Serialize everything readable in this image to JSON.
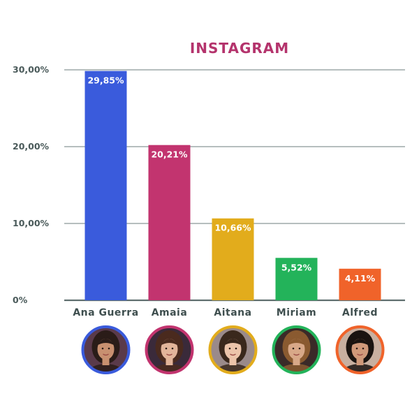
{
  "chart_data": {
    "type": "bar",
    "title": "INSTAGRAM",
    "xlabel": "",
    "ylabel": "",
    "categories": [
      "Ana Guerra",
      "Amaia",
      "Aitana",
      "Miriam",
      "Alfred"
    ],
    "values": [
      29.85,
      20.21,
      10.66,
      5.52,
      4.11
    ],
    "value_labels": [
      "29,85%",
      "20,21%",
      "10,66%",
      "5,52%",
      "4,11%"
    ],
    "colors": [
      "#3a5bdc",
      "#c2346f",
      "#e2ac1c",
      "#23b35a",
      "#f0632a"
    ],
    "title_color": "#b4336c",
    "ylim": [
      0,
      30
    ],
    "yticks": [
      0,
      10,
      20,
      30
    ],
    "ytick_labels": [
      "0%",
      "10,00%",
      "20,00%",
      "30,00%"
    ],
    "grid": true,
    "legend": "none",
    "avatars": [
      {
        "name": "Ana Guerra",
        "ring": "#3a5bdc",
        "skin": "#c89070",
        "hair": "#2a1c18",
        "bg": "#5a3a4a"
      },
      {
        "name": "Amaia",
        "ring": "#c2346f",
        "skin": "#e2b49a",
        "hair": "#4a2a1e",
        "bg": "#3a2a3a"
      },
      {
        "name": "Aitana",
        "ring": "#e2ac1c",
        "skin": "#ecc4aa",
        "hair": "#3a281c",
        "bg": "#9a8a8a"
      },
      {
        "name": "Miriam",
        "ring": "#23b35a",
        "skin": "#d8a888",
        "hair": "#8a5a30",
        "bg": "#3a2a28"
      },
      {
        "name": "Alfred",
        "ring": "#f0632a",
        "skin": "#d09a7a",
        "hair": "#1a1410",
        "bg": "#c8b0a0"
      }
    ]
  }
}
